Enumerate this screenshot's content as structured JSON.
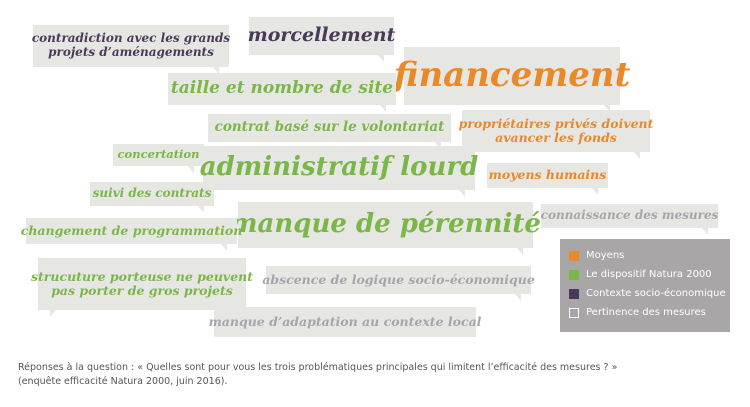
{
  "bubbles": [
    {
      "id": "contradiction",
      "line1": "contradiction avec les grands",
      "line2": "projets d’aménagements",
      "category": "Contexte socio-économique"
    },
    {
      "id": "morcellement",
      "line1": "morcellement",
      "line2": "",
      "category": "Contexte socio-économique"
    },
    {
      "id": "financement",
      "line1": "financement",
      "line2": "",
      "category": "Moyens"
    },
    {
      "id": "taille",
      "line1": "taille et nombre de site",
      "line2": "",
      "category": "Le dispositif Natura 2000"
    },
    {
      "id": "contrat",
      "line1": "contrat basé sur le volontariat",
      "line2": "",
      "category": "Le dispositif Natura 2000"
    },
    {
      "id": "proprietaires",
      "line1": "propriétaires privés doivent",
      "line2": "avancer les fonds",
      "category": "Moyens"
    },
    {
      "id": "concertation",
      "line1": "concertation",
      "line2": "",
      "category": "Le dispositif Natura 2000"
    },
    {
      "id": "administratif",
      "line1": "administratif lourd",
      "line2": "",
      "category": "Le dispositif Natura 2000"
    },
    {
      "id": "moyens-humains",
      "line1": "moyens humains",
      "line2": "",
      "category": "Moyens"
    },
    {
      "id": "suivi",
      "line1": "suivi des contrats",
      "line2": "",
      "category": "Le dispositif Natura 2000"
    },
    {
      "id": "perennite",
      "line1": "manque de pérennité",
      "line2": "",
      "category": "Le dispositif Natura 2000"
    },
    {
      "id": "connaissance",
      "line1": "connaissance des mesures",
      "line2": "",
      "category": "Pertinence des mesures"
    },
    {
      "id": "changement",
      "line1": "changement de programmation",
      "line2": "",
      "category": "Le dispositif Natura 2000"
    },
    {
      "id": "structure",
      "line1": "strucuture porteuse ne peuvent",
      "line2": "pas porter de gros projets",
      "category": "Le dispositif Natura 2000"
    },
    {
      "id": "absence",
      "line1": "abscence de logique socio-économique",
      "line2": "",
      "category": "Pertinence des mesures"
    },
    {
      "id": "adaptation",
      "line1": "manque d’adaptation au contexte local",
      "line2": "",
      "category": "Pertinence des mesures"
    }
  ],
  "legend": [
    {
      "label": "Moyens",
      "color": "#e8892a"
    },
    {
      "label": "Le dispositif Natura 2000",
      "color": "#7ab648"
    },
    {
      "label": "Contexte socio-économique",
      "color": "#4a3a5a"
    },
    {
      "label": "Pertinence des mesures",
      "color": "#a8a4ac"
    }
  ],
  "caption": {
    "line1": "Réponses à la question : « Quelles sont pour vous les trois problématiques principales qui limitent l’efficacité des mesures ? »",
    "line2": "(enquête efficacité Natura 2000, juin 2016)."
  }
}
